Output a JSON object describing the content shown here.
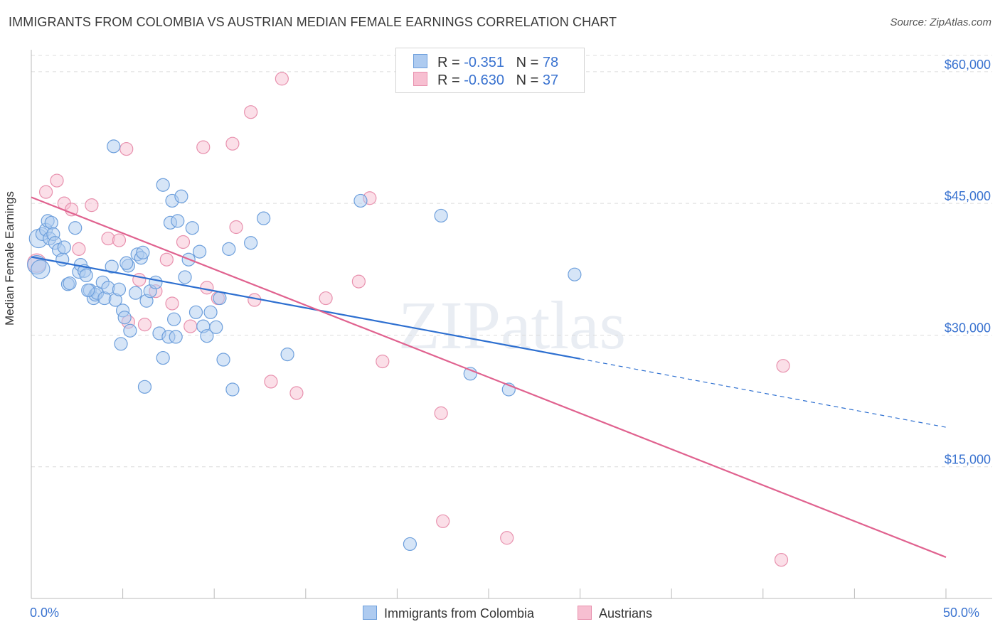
{
  "title": "IMMIGRANTS FROM COLOMBIA VS AUSTRIAN MEDIAN FEMALE EARNINGS CORRELATION CHART",
  "source": "Source: ZipAtlas.com",
  "watermark": "ZIPatlas",
  "legend_top": {
    "rows": [
      {
        "r_label": "R =",
        "r_value": "-0.351",
        "n_label": "N =",
        "n_value": "78"
      },
      {
        "r_label": "R =",
        "r_value": "-0.630",
        "n_label": "N =",
        "n_value": "37"
      }
    ]
  },
  "legend_bottom": {
    "colombia": "Immigrants from Colombia",
    "austrians": "Austrians"
  },
  "colors": {
    "blue_fill": "#aecbf0",
    "blue_stroke": "#6d9fdc",
    "blue_line": "#2d6fd0",
    "pink_fill": "#f7bfd1",
    "pink_stroke": "#e891ae",
    "pink_line": "#e0628f",
    "tick_text": "#3a73d0",
    "grid": "#dcdcdc"
  },
  "chart_data": {
    "type": "scatter",
    "title": "IMMIGRANTS FROM COLOMBIA VS AUSTRIAN MEDIAN FEMALE EARNINGS CORRELATION CHART",
    "xlabel": "",
    "ylabel": "Median Female Earnings",
    "xlim": [
      0,
      50
    ],
    "ylim": [
      0,
      62500
    ],
    "x_tick_labels": [
      "0.0%",
      "50.0%"
    ],
    "y_ticks": [
      15000,
      30000,
      45000,
      60000
    ],
    "y_tick_labels": [
      "$15,000",
      "$30,000",
      "$45,000",
      "$60,000"
    ],
    "series": [
      {
        "name": "Immigrants from Colombia",
        "color": "blue",
        "r": -0.351,
        "n": 78,
        "trend": {
          "x0": 0,
          "y0": 38900,
          "x1": 30,
          "y1": 27300,
          "dash_to_x": 50,
          "dash_to_y": 19500
        },
        "points": [
          [
            0.3,
            38000
          ],
          [
            0.4,
            41000
          ],
          [
            0.5,
            37500
          ],
          [
            0.6,
            41500
          ],
          [
            0.8,
            42000
          ],
          [
            0.9,
            43000
          ],
          [
            1.0,
            41000
          ],
          [
            1.1,
            42800
          ],
          [
            1.2,
            41500
          ],
          [
            1.3,
            40500
          ],
          [
            1.5,
            39700
          ],
          [
            1.7,
            38600
          ],
          [
            1.8,
            40000
          ],
          [
            2.0,
            35800
          ],
          [
            2.1,
            35900
          ],
          [
            2.4,
            42200
          ],
          [
            2.6,
            37200
          ],
          [
            2.7,
            38000
          ],
          [
            2.9,
            37300
          ],
          [
            3.0,
            36800
          ],
          [
            3.2,
            35100
          ],
          [
            3.4,
            34200
          ],
          [
            3.5,
            34600
          ],
          [
            3.6,
            34800
          ],
          [
            3.9,
            36000
          ],
          [
            4.0,
            34200
          ],
          [
            4.2,
            35400
          ],
          [
            4.4,
            37800
          ],
          [
            4.6,
            34000
          ],
          [
            4.8,
            35200
          ],
          [
            4.9,
            29000
          ],
          [
            5.0,
            32800
          ],
          [
            5.1,
            32000
          ],
          [
            5.3,
            37900
          ],
          [
            5.4,
            30500
          ],
          [
            5.7,
            34800
          ],
          [
            5.8,
            39200
          ],
          [
            6.0,
            38800
          ],
          [
            6.1,
            39400
          ],
          [
            6.3,
            33900
          ],
          [
            6.5,
            35000
          ],
          [
            6.8,
            36000
          ],
          [
            7.0,
            30200
          ],
          [
            7.2,
            27400
          ],
          [
            7.5,
            29800
          ],
          [
            7.6,
            42800
          ],
          [
            7.7,
            45300
          ],
          [
            7.8,
            31800
          ],
          [
            7.9,
            29800
          ],
          [
            8.0,
            43000
          ],
          [
            8.2,
            45800
          ],
          [
            8.4,
            36600
          ],
          [
            8.6,
            38600
          ],
          [
            8.8,
            42200
          ],
          [
            9.0,
            32600
          ],
          [
            9.2,
            39500
          ],
          [
            9.4,
            31000
          ],
          [
            9.6,
            29900
          ],
          [
            9.8,
            32600
          ],
          [
            10.1,
            30900
          ],
          [
            10.3,
            34200
          ],
          [
            10.5,
            27200
          ],
          [
            10.8,
            39800
          ],
          [
            11.0,
            23800
          ],
          [
            12.0,
            40500
          ],
          [
            12.7,
            43300
          ],
          [
            14.0,
            27800
          ],
          [
            18.0,
            45300
          ],
          [
            20.7,
            6200
          ],
          [
            22.4,
            43600
          ],
          [
            24.0,
            25600
          ],
          [
            26.1,
            23800
          ],
          [
            29.7,
            36900
          ],
          [
            4.5,
            51500
          ],
          [
            7.2,
            47100
          ],
          [
            3.1,
            35100
          ],
          [
            5.2,
            38200
          ],
          [
            6.2,
            24100
          ]
        ]
      },
      {
        "name": "Austrians",
        "color": "pink",
        "r": -0.63,
        "n": 37,
        "trend": {
          "x0": 0,
          "y0": 45700,
          "x1": 50,
          "y1": 4700
        },
        "points": [
          [
            0.3,
            38200
          ],
          [
            0.8,
            46300
          ],
          [
            1.4,
            47600
          ],
          [
            1.8,
            45000
          ],
          [
            2.2,
            44300
          ],
          [
            2.6,
            39800
          ],
          [
            3.3,
            44800
          ],
          [
            4.2,
            41000
          ],
          [
            4.8,
            40800
          ],
          [
            5.2,
            51200
          ],
          [
            5.3,
            31500
          ],
          [
            5.9,
            36300
          ],
          [
            6.2,
            31200
          ],
          [
            6.8,
            35000
          ],
          [
            7.4,
            38600
          ],
          [
            7.7,
            33600
          ],
          [
            8.3,
            40600
          ],
          [
            8.7,
            31000
          ],
          [
            9.4,
            51400
          ],
          [
            9.6,
            35400
          ],
          [
            10.2,
            34200
          ],
          [
            11.0,
            51800
          ],
          [
            11.2,
            42300
          ],
          [
            12.0,
            55400
          ],
          [
            12.2,
            34000
          ],
          [
            13.1,
            24700
          ],
          [
            13.7,
            59200
          ],
          [
            14.5,
            23400
          ],
          [
            16.1,
            34200
          ],
          [
            17.9,
            36100
          ],
          [
            18.5,
            45600
          ],
          [
            19.2,
            27000
          ],
          [
            22.4,
            21100
          ],
          [
            22.5,
            8800
          ],
          [
            26.0,
            6900
          ],
          [
            41.1,
            26500
          ],
          [
            41.0,
            4400
          ]
        ]
      }
    ]
  }
}
